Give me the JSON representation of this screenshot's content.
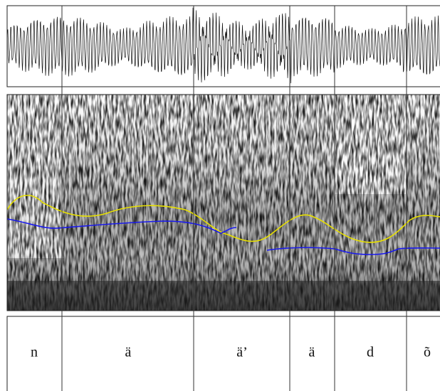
{
  "labels": [
    "n",
    "ä",
    "ä’",
    "ä",
    "d",
    "õ"
  ]
}
